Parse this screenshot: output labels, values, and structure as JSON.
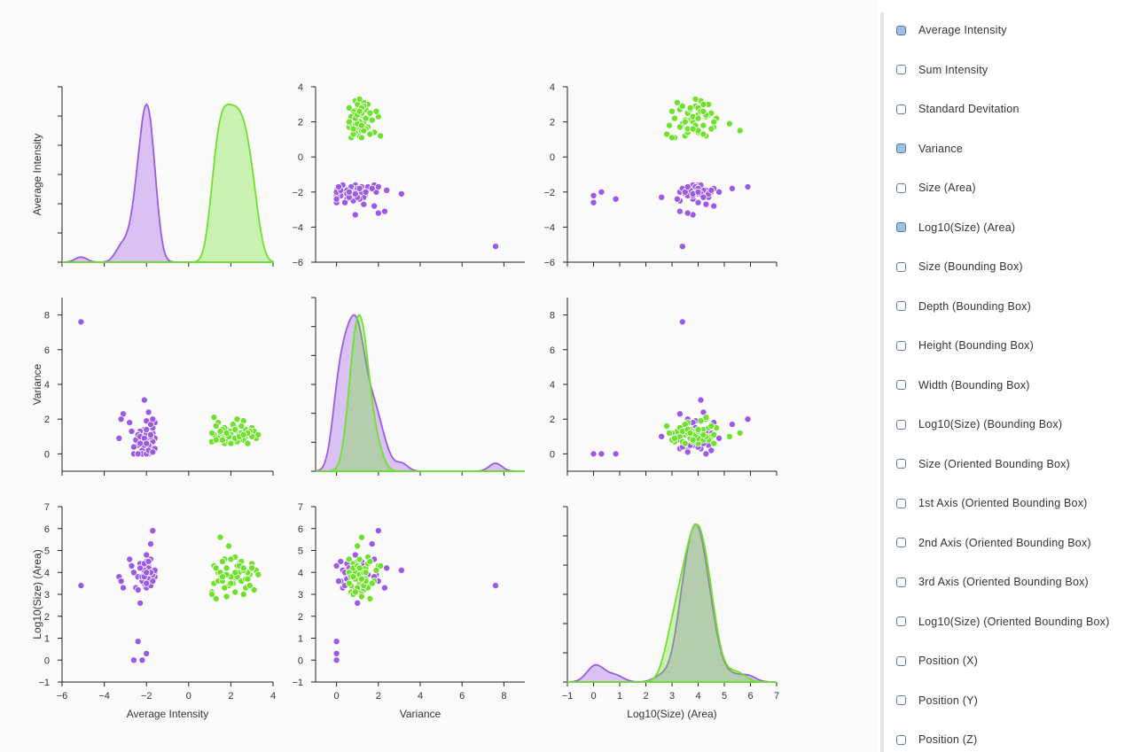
{
  "sidebar": {
    "items": [
      {
        "label": "Average Intensity",
        "checked": true
      },
      {
        "label": "Sum Intensity",
        "checked": false
      },
      {
        "label": "Standard Devitation",
        "checked": false
      },
      {
        "label": "Variance",
        "checked": true
      },
      {
        "label": "Size (Area)",
        "checked": false
      },
      {
        "label": "Log10(Size) (Area)",
        "checked": true
      },
      {
        "label": "Size (Bounding Box)",
        "checked": false
      },
      {
        "label": "Depth (Bounding Box)",
        "checked": false
      },
      {
        "label": "Height (Bounding Box)",
        "checked": false
      },
      {
        "label": "Width (Bounding Box)",
        "checked": false
      },
      {
        "label": "Log10(Size) (Bounding Box)",
        "checked": false
      },
      {
        "label": "Size (Oriented Bounding Box)",
        "checked": false
      },
      {
        "label": "1st Axis (Oriented Bounding Box)",
        "checked": false
      },
      {
        "label": "2nd Axis (Oriented Bounding Box)",
        "checked": false
      },
      {
        "label": "3rd Axis (Oriented Bounding Box)",
        "checked": false
      },
      {
        "label": "Log10(Size) (Oriented Bounding Box)",
        "checked": false
      },
      {
        "label": "Position (X)",
        "checked": false
      },
      {
        "label": "Position (Y)",
        "checked": false
      },
      {
        "label": "Position (Z)",
        "checked": false
      }
    ]
  },
  "chart_data": {
    "type": "scatter",
    "kind": "pairplot",
    "variables": [
      "Average Intensity",
      "Variance",
      "Log10(Size) (Area)"
    ],
    "axes": {
      "Average Intensity": {
        "label": "Average Intensity",
        "range": [
          -6,
          4
        ],
        "ticks": [
          -6,
          -4,
          -2,
          0,
          2,
          4
        ]
      },
      "Variance": {
        "label": "Variance",
        "range": [
          -1,
          9
        ],
        "ticks": [
          0,
          2,
          4,
          6,
          8
        ]
      },
      "Log10(Size) (Area)": {
        "label": "Log10(Size) (Area)",
        "range": [
          -1,
          7
        ],
        "ticks": [
          -1,
          0,
          1,
          2,
          3,
          4,
          5,
          6,
          7
        ]
      }
    },
    "colors": {
      "purple": "#9b59e6",
      "green": "#6ee22a"
    },
    "groups": [
      {
        "color": "purple",
        "points": [
          [
            -1.9,
            1.0,
            3.9
          ],
          [
            -2.3,
            0.8,
            4.2
          ],
          [
            -1.7,
            1.2,
            3.6
          ],
          [
            -2.0,
            0.3,
            3.3
          ],
          [
            -1.8,
            1.6,
            4.6
          ],
          [
            -2.4,
            0.5,
            3.8
          ],
          [
            -1.6,
            0.9,
            4.0
          ],
          [
            -2.1,
            1.4,
            3.5
          ],
          [
            -1.9,
            0.0,
            4.3
          ],
          [
            -2.2,
            1.1,
            3.7
          ],
          [
            -1.7,
            0.7,
            4.1
          ],
          [
            -2.0,
            1.9,
            3.9
          ],
          [
            -1.8,
            0.4,
            3.4
          ],
          [
            -2.3,
            1.3,
            4.4
          ],
          [
            -1.6,
            1.8,
            3.8
          ],
          [
            -2.1,
            0.6,
            4.0
          ],
          [
            -1.9,
            2.4,
            4.2
          ],
          [
            -2.2,
            0.2,
            3.6
          ],
          [
            -1.7,
            1.5,
            3.9
          ],
          [
            -2.0,
            0.9,
            4.8
          ],
          [
            -1.8,
            1.0,
            4.0
          ],
          [
            -2.5,
            0.8,
            3.3
          ],
          [
            -1.9,
            0.5,
            3.7
          ],
          [
            -2.0,
            1.2,
            4.5
          ],
          [
            -2.2,
            0.7,
            3.8
          ],
          [
            -1.6,
            0.3,
            4.1
          ],
          [
            -1.8,
            1.7,
            5.3
          ],
          [
            -1.7,
            2.0,
            5.9
          ],
          [
            -2.4,
            1.1,
            3.2
          ],
          [
            -2.1,
            3.1,
            4.1
          ],
          [
            -2.3,
            1.0,
            2.6
          ],
          [
            -2.8,
            1.8,
            4.6
          ],
          [
            -3.1,
            2.3,
            3.3
          ],
          [
            -3.3,
            0.9,
            3.8
          ],
          [
            -2.6,
            0.0,
            0.0
          ],
          [
            -2.2,
            0.0,
            0.0
          ],
          [
            -2.0,
            0.0,
            0.3
          ],
          [
            -2.4,
            0.0,
            0.85
          ],
          [
            -5.1,
            7.6,
            3.4
          ],
          [
            -2.1,
            0.5,
            4.4
          ],
          [
            -1.9,
            0.2,
            4.5
          ],
          [
            -2.0,
            1.4,
            3.5
          ],
          [
            -2.6,
            0.4,
            4.0
          ],
          [
            -1.7,
            0.1,
            3.6
          ],
          [
            -2.3,
            0.6,
            4.2
          ],
          [
            -1.8,
            1.1,
            4.0
          ],
          [
            -2.1,
            0.9,
            3.8
          ],
          [
            -2.0,
            0.6,
            4.0
          ],
          [
            -3.2,
            2.0,
            3.6
          ],
          [
            -2.7,
            1.3,
            4.3
          ]
        ]
      },
      {
        "color": "green",
        "points": [
          [
            1.2,
            1.1,
            3.5
          ],
          [
            1.5,
            0.8,
            3.9
          ],
          [
            1.8,
            1.4,
            4.2
          ],
          [
            2.1,
            0.9,
            3.7
          ],
          [
            2.4,
            1.2,
            4.0
          ],
          [
            2.7,
            1.0,
            3.3
          ],
          [
            3.0,
            1.5,
            4.4
          ],
          [
            1.1,
            0.7,
            3.1
          ],
          [
            1.4,
            1.8,
            3.6
          ],
          [
            1.7,
            0.6,
            4.6
          ],
          [
            2.0,
            1.3,
            3.8
          ],
          [
            2.3,
            2.0,
            4.3
          ],
          [
            2.6,
            0.8,
            3.0
          ],
          [
            2.9,
            1.1,
            3.9
          ],
          [
            3.2,
            0.9,
            4.1
          ],
          [
            1.3,
            1.6,
            2.8
          ],
          [
            1.6,
            1.0,
            4.5
          ],
          [
            1.9,
            0.7,
            3.4
          ],
          [
            2.2,
            1.5,
            4.7
          ],
          [
            2.5,
            1.2,
            3.6
          ],
          [
            2.8,
            0.6,
            4.0
          ],
          [
            3.1,
            1.3,
            3.2
          ],
          [
            1.2,
            2.1,
            4.3
          ],
          [
            1.5,
            1.2,
            5.6
          ],
          [
            1.8,
            0.9,
            3.9
          ],
          [
            2.1,
            1.7,
            3.5
          ],
          [
            2.4,
            0.8,
            4.4
          ],
          [
            2.7,
            1.4,
            3.7
          ],
          [
            3.0,
            1.0,
            4.2
          ],
          [
            1.1,
            1.2,
            3.0
          ],
          [
            1.4,
            0.9,
            4.0
          ],
          [
            1.7,
            1.5,
            3.3
          ],
          [
            2.0,
            1.1,
            4.6
          ],
          [
            2.3,
            0.7,
            3.8
          ],
          [
            2.6,
            1.9,
            4.1
          ],
          [
            2.9,
            1.3,
            3.4
          ],
          [
            3.3,
            1.1,
            3.9
          ],
          [
            1.3,
            0.8,
            4.2
          ],
          [
            1.6,
            1.4,
            3.6
          ],
          [
            1.9,
            1.0,
            5.2
          ],
          [
            2.2,
            0.9,
            3.1
          ],
          [
            2.5,
            1.6,
            4.5
          ],
          [
            2.8,
            1.2,
            3.7
          ],
          [
            1.5,
            1.3,
            4.0
          ],
          [
            2.0,
            0.6,
            3.5
          ],
          [
            2.4,
            1.0,
            4.3
          ],
          [
            1.8,
            1.2,
            2.9
          ],
          [
            2.2,
            1.4,
            4.0
          ],
          [
            1.6,
            0.8,
            3.8
          ],
          [
            2.6,
            1.1,
            4.2
          ]
        ]
      }
    ]
  }
}
